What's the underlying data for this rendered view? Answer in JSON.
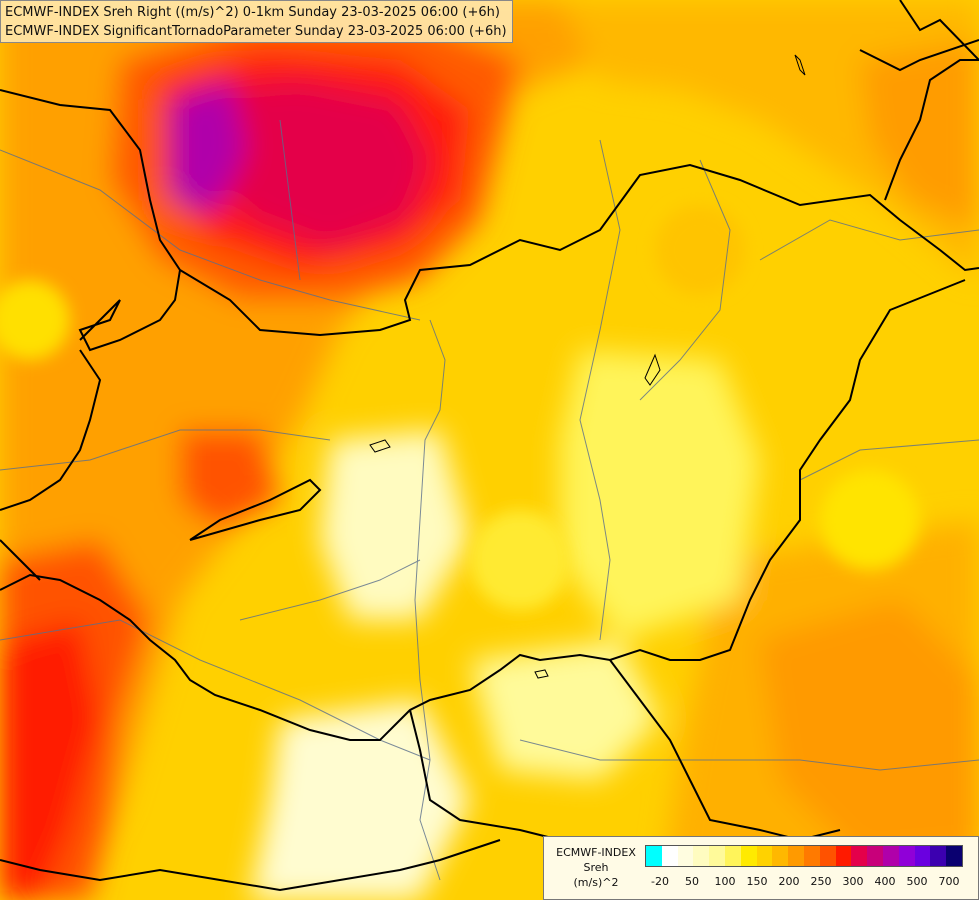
{
  "title": {
    "line1": "ECMWF-INDEX Sreh Right ((m/s)^2) 0-1km Sunday 23-03-2025 06:00 (+6h)",
    "line2": "ECMWF-INDEX SignificantTornadoParameter Sunday 23-03-2025 06:00 (+6h)"
  },
  "legend": {
    "title_line1": "ECMWF-INDEX",
    "title_line2": "Sreh",
    "units": "(m/s)^2",
    "colors": [
      "#00ffff",
      "#ffffff",
      "#fffde0",
      "#fffcc0",
      "#fffa9a",
      "#fff45a",
      "#ffea00",
      "#ffd200",
      "#ffb800",
      "#ff9a00",
      "#ff7a00",
      "#ff5200",
      "#ff1a00",
      "#e4004a",
      "#c8007a",
      "#b000aa",
      "#9000d8",
      "#6a00e0",
      "#3c00b0",
      "#0a0070"
    ],
    "tick_labels": [
      "-20",
      "50",
      "100",
      "150",
      "200",
      "250",
      "300",
      "400",
      "500",
      "700"
    ]
  }
}
